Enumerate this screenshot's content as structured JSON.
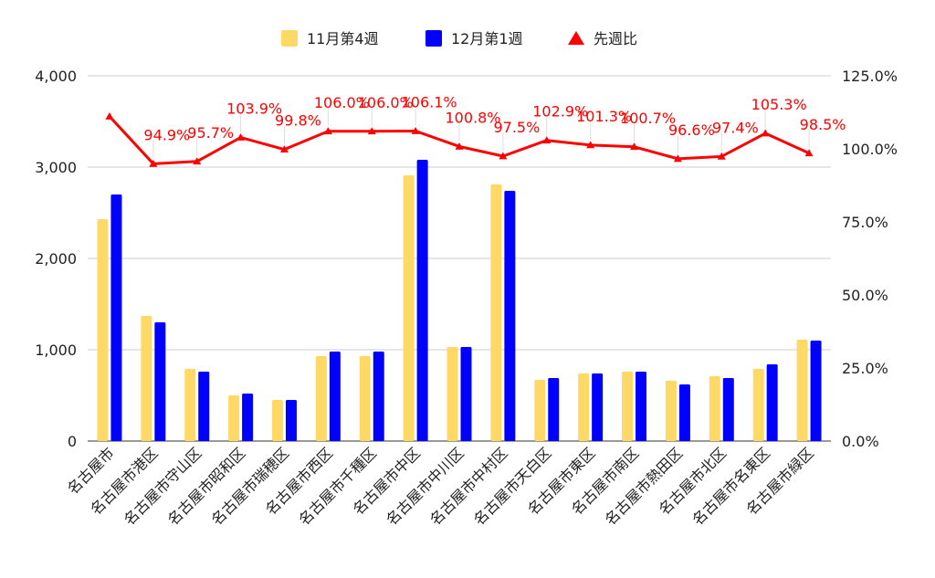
{
  "chart_data": {
    "type": "bar",
    "categories": [
      "名古屋市",
      "名古屋市港区",
      "名古屋市守山区",
      "名古屋市昭和区",
      "名古屋市瑞穂区",
      "名古屋市西区",
      "名古屋市千種区",
      "名古屋市中区",
      "名古屋市中川区",
      "名古屋市中村区",
      "名古屋市天白区",
      "名古屋市東区",
      "名古屋市南区",
      "名古屋市熱田区",
      "名古屋市北区",
      "名古屋市名東区",
      "名古屋市緑区"
    ],
    "series": [
      {
        "name": "11月第4週",
        "kind": "bar",
        "axis": "left",
        "color": "#ffd966",
        "values": [
          2430,
          1370,
          790,
          500,
          450,
          930,
          930,
          2910,
          1030,
          2810,
          670,
          740,
          760,
          660,
          710,
          790,
          1110
        ]
      },
      {
        "name": "12月第1週",
        "kind": "bar",
        "axis": "left",
        "color": "#0000ff",
        "values": [
          2700,
          1300,
          760,
          520,
          450,
          980,
          980,
          3080,
          1030,
          2740,
          690,
          740,
          760,
          620,
          690,
          840,
          1100
        ]
      },
      {
        "name": "先週比",
        "kind": "line",
        "axis": "right",
        "color": "#ff0000",
        "values": [
          111.1,
          94.9,
          95.7,
          103.9,
          99.8,
          106.0,
          106.0,
          106.1,
          100.8,
          97.5,
          102.9,
          101.3,
          100.7,
          96.6,
          97.4,
          105.3,
          98.5
        ],
        "labels": [
          "",
          "94.9%",
          "95.7%",
          "103.9%",
          "99.8%",
          "106.0%",
          "106.0%",
          "106.1%",
          "100.8%",
          "97.5%",
          "102.9%",
          "101.3%",
          "100.7%",
          "96.6%",
          "97.4%",
          "105.3%",
          "98.5%"
        ]
      }
    ],
    "y_left": {
      "min": 0,
      "max": 4000,
      "ticks": [
        "0",
        "1,000",
        "2,000",
        "3,000",
        "4,000"
      ]
    },
    "y_right": {
      "min": 0,
      "max": 125,
      "ticks": [
        "0.0%",
        "25.0%",
        "50.0%",
        "75.0%",
        "100.0%",
        "125.0%"
      ]
    },
    "legend_position": "top",
    "grid": true
  }
}
